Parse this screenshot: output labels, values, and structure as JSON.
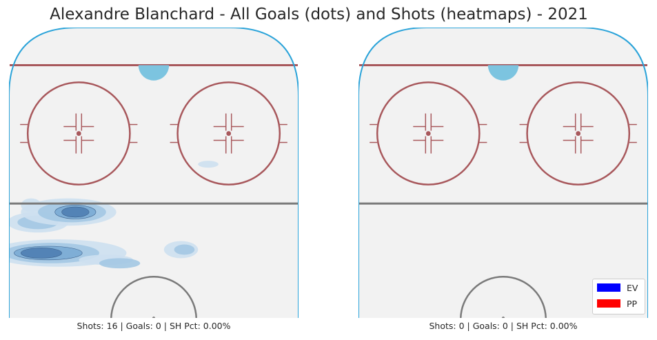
{
  "title": "Alexandre Blanchard - All Goals (dots) and Shots (heatmaps) - 2021",
  "colors": {
    "rink_ice": "#f2f2f2",
    "boards": "#2aa3d9",
    "red_line": "#a8585c",
    "crease": "#7cc4e0",
    "center_line": "#7a7a7a",
    "heat": [
      "#cde0ef",
      "#a3c8e3",
      "#7aabd4",
      "#4f7eb3"
    ],
    "ev": "#0000ff",
    "pp": "#ff0000"
  },
  "chart_data": [
    {
      "type": "heatmap",
      "caption": "Shots: 16 | Goals: 0 | SH Pct: 0.00%",
      "shots": 16,
      "goals": 0,
      "sh_pct": "0.00%",
      "shot_density": [
        {
          "x": -34,
          "y": 43,
          "w": 9,
          "h": 3,
          "level": 1
        },
        {
          "x": -34,
          "y": 43,
          "w": 6,
          "h": 2,
          "level": 2
        },
        {
          "x": -36,
          "y": 48,
          "w": 3,
          "h": 2,
          "level": 1
        },
        {
          "x": -25,
          "y": 46,
          "w": 14,
          "h": 4,
          "level": 1
        },
        {
          "x": -24,
          "y": 46,
          "w": 10,
          "h": 3,
          "level": 2
        },
        {
          "x": -23,
          "y": 46,
          "w": 6,
          "h": 2,
          "level": 3
        },
        {
          "x": -23,
          "y": 46,
          "w": 4,
          "h": 1.5,
          "level": 4
        },
        {
          "x": 8,
          "y": 35,
          "w": 5,
          "h": 2.5,
          "level": 1
        },
        {
          "x": 9,
          "y": 35,
          "w": 3,
          "h": 1.5,
          "level": 2
        },
        {
          "x": 16,
          "y": 60,
          "w": 3,
          "h": 1,
          "level": 1
        },
        {
          "x": -28,
          "y": 34,
          "w": 20,
          "h": 4,
          "level": 1
        },
        {
          "x": -30,
          "y": 34,
          "w": 14,
          "h": 3,
          "level": 2
        },
        {
          "x": -31,
          "y": 34,
          "w": 10,
          "h": 2,
          "level": 3
        },
        {
          "x": -33,
          "y": 34,
          "w": 6,
          "h": 1.5,
          "level": 4
        },
        {
          "x": -14,
          "y": 32,
          "w": 8,
          "h": 1.5,
          "level": 1
        },
        {
          "x": -10,
          "y": 31,
          "w": 6,
          "h": 1.5,
          "level": 2
        }
      ],
      "goal_dots": []
    },
    {
      "type": "heatmap",
      "caption": "Shots: 0 | Goals: 0 | SH Pct: 0.00%",
      "shots": 0,
      "goals": 0,
      "sh_pct": "0.00%",
      "shot_density": [],
      "goal_dots": []
    }
  ],
  "legend": [
    {
      "label": "EV",
      "color": "#0000ff"
    },
    {
      "label": "PP",
      "color": "#ff0000"
    }
  ]
}
